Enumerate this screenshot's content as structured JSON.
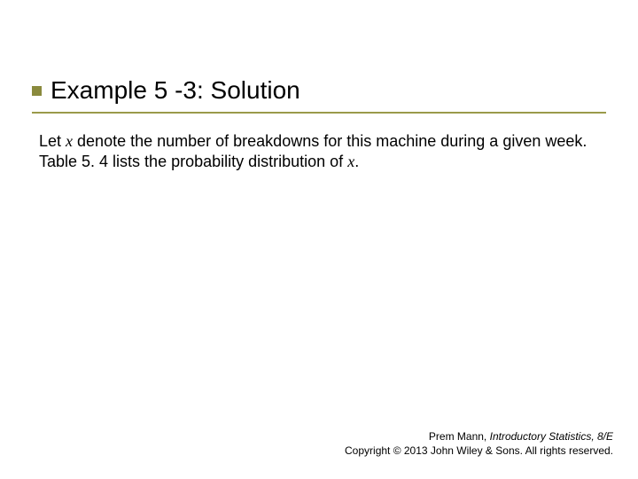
{
  "colors": {
    "background": "#ffffff",
    "bullet": "#8a8a3d",
    "underline": "#9a9a4a",
    "text": "#000000"
  },
  "typography": {
    "title_fontsize": 28,
    "body_fontsize": 18,
    "footer_fontsize": 12,
    "body_font": "Verdana",
    "var_font": "Times New Roman Italic"
  },
  "title": "Example 5 -3: Solution",
  "body": {
    "p1_a": "Let ",
    "p1_var1": "x",
    "p1_b": " denote the number of breakdowns for this machine during a given week. Table 5. 4 lists the probability distribution of ",
    "p1_var2": "x",
    "p1_c": "."
  },
  "footer": {
    "line1_a": "Prem Mann, ",
    "line1_b": "Introductory Statistics, 8/E",
    "line2": "Copyright © 2013 John Wiley & Sons. All rights reserved."
  }
}
